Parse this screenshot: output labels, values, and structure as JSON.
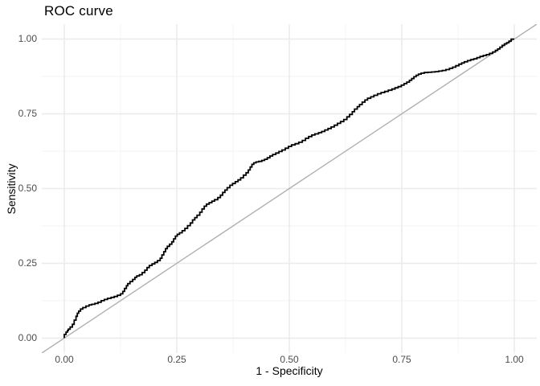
{
  "chart_data": {
    "type": "line",
    "title": "ROC curve",
    "xlabel": "1 - Specificity",
    "ylabel": "Sensitivity",
    "xlim": [
      -0.05,
      1.05
    ],
    "ylim": [
      -0.05,
      1.05
    ],
    "x_ticks": {
      "values": [
        0,
        0.25,
        0.5,
        0.75,
        1
      ],
      "labels": [
        "0.00",
        "0.25",
        "0.50",
        "0.75",
        "1.00"
      ]
    },
    "y_ticks": {
      "values": [
        0,
        0.25,
        0.5,
        0.75,
        1
      ],
      "labels": [
        "0.00",
        "0.25",
        "0.50",
        "0.75",
        "1.00"
      ]
    },
    "minor_tick_values": [
      0.125,
      0.375,
      0.625,
      0.875
    ],
    "grid": {
      "show": true,
      "major_color": "#ebebeb",
      "minor_color": "#f2f2f2",
      "major_width": 1.6,
      "minor_width": 0.9
    },
    "legend": "none",
    "background": "#ffffff",
    "series": [
      {
        "name": "roc-curve",
        "draw": "step",
        "color": "#000000",
        "width": 1.8,
        "points": [
          [
            0.0,
            0.0
          ],
          [
            0.004,
            0.012
          ],
          [
            0.007,
            0.02
          ],
          [
            0.009,
            0.025
          ],
          [
            0.013,
            0.03
          ],
          [
            0.018,
            0.037
          ],
          [
            0.022,
            0.046
          ],
          [
            0.026,
            0.06
          ],
          [
            0.029,
            0.073
          ],
          [
            0.032,
            0.083
          ],
          [
            0.036,
            0.09
          ],
          [
            0.041,
            0.097
          ],
          [
            0.048,
            0.102
          ],
          [
            0.055,
            0.107
          ],
          [
            0.061,
            0.111
          ],
          [
            0.068,
            0.113
          ],
          [
            0.075,
            0.116
          ],
          [
            0.082,
            0.12
          ],
          [
            0.089,
            0.125
          ],
          [
            0.096,
            0.129
          ],
          [
            0.104,
            0.133
          ],
          [
            0.111,
            0.136
          ],
          [
            0.118,
            0.139
          ],
          [
            0.125,
            0.143
          ],
          [
            0.13,
            0.148
          ],
          [
            0.134,
            0.156
          ],
          [
            0.138,
            0.166
          ],
          [
            0.141,
            0.175
          ],
          [
            0.146,
            0.182
          ],
          [
            0.152,
            0.189
          ],
          [
            0.157,
            0.196
          ],
          [
            0.161,
            0.203
          ],
          [
            0.167,
            0.208
          ],
          [
            0.173,
            0.212
          ],
          [
            0.179,
            0.219
          ],
          [
            0.184,
            0.227
          ],
          [
            0.189,
            0.236
          ],
          [
            0.195,
            0.243
          ],
          [
            0.201,
            0.248
          ],
          [
            0.207,
            0.253
          ],
          [
            0.213,
            0.259
          ],
          [
            0.217,
            0.267
          ],
          [
            0.221,
            0.278
          ],
          [
            0.225,
            0.289
          ],
          [
            0.229,
            0.299
          ],
          [
            0.234,
            0.307
          ],
          [
            0.239,
            0.314
          ],
          [
            0.243,
            0.322
          ],
          [
            0.247,
            0.332
          ],
          [
            0.251,
            0.341
          ],
          [
            0.256,
            0.347
          ],
          [
            0.262,
            0.352
          ],
          [
            0.268,
            0.359
          ],
          [
            0.274,
            0.367
          ],
          [
            0.28,
            0.376
          ],
          [
            0.285,
            0.385
          ],
          [
            0.29,
            0.395
          ],
          [
            0.295,
            0.403
          ],
          [
            0.301,
            0.411
          ],
          [
            0.306,
            0.421
          ],
          [
            0.311,
            0.432
          ],
          [
            0.316,
            0.441
          ],
          [
            0.322,
            0.448
          ],
          [
            0.328,
            0.453
          ],
          [
            0.334,
            0.458
          ],
          [
            0.341,
            0.463
          ],
          [
            0.347,
            0.47
          ],
          [
            0.352,
            0.478
          ],
          [
            0.357,
            0.487
          ],
          [
            0.362,
            0.495
          ],
          [
            0.368,
            0.503
          ],
          [
            0.374,
            0.511
          ],
          [
            0.38,
            0.517
          ],
          [
            0.386,
            0.523
          ],
          [
            0.392,
            0.529
          ],
          [
            0.398,
            0.536
          ],
          [
            0.404,
            0.545
          ],
          [
            0.409,
            0.553
          ],
          [
            0.413,
            0.562
          ],
          [
            0.417,
            0.572
          ],
          [
            0.421,
            0.581
          ],
          [
            0.426,
            0.586
          ],
          [
            0.432,
            0.589
          ],
          [
            0.439,
            0.591
          ],
          [
            0.445,
            0.594
          ],
          [
            0.451,
            0.598
          ],
          [
            0.457,
            0.603
          ],
          [
            0.463,
            0.609
          ],
          [
            0.47,
            0.614
          ],
          [
            0.477,
            0.619
          ],
          [
            0.484,
            0.624
          ],
          [
            0.491,
            0.629
          ],
          [
            0.498,
            0.635
          ],
          [
            0.505,
            0.641
          ],
          [
            0.513,
            0.646
          ],
          [
            0.521,
            0.65
          ],
          [
            0.529,
            0.655
          ],
          [
            0.536,
            0.661
          ],
          [
            0.543,
            0.668
          ],
          [
            0.55,
            0.674
          ],
          [
            0.557,
            0.679
          ],
          [
            0.565,
            0.683
          ],
          [
            0.572,
            0.687
          ],
          [
            0.579,
            0.691
          ],
          [
            0.586,
            0.696
          ],
          [
            0.593,
            0.701
          ],
          [
            0.6,
            0.706
          ],
          [
            0.607,
            0.712
          ],
          [
            0.614,
            0.718
          ],
          [
            0.621,
            0.724
          ],
          [
            0.628,
            0.731
          ],
          [
            0.634,
            0.74
          ],
          [
            0.64,
            0.748
          ],
          [
            0.645,
            0.757
          ],
          [
            0.651,
            0.766
          ],
          [
            0.656,
            0.774
          ],
          [
            0.662,
            0.781
          ],
          [
            0.668,
            0.789
          ],
          [
            0.674,
            0.796
          ],
          [
            0.681,
            0.802
          ],
          [
            0.688,
            0.807
          ],
          [
            0.696,
            0.812
          ],
          [
            0.704,
            0.817
          ],
          [
            0.712,
            0.821
          ],
          [
            0.72,
            0.825
          ],
          [
            0.728,
            0.829
          ],
          [
            0.735,
            0.833
          ],
          [
            0.742,
            0.837
          ],
          [
            0.749,
            0.841
          ],
          [
            0.755,
            0.846
          ],
          [
            0.761,
            0.851
          ],
          [
            0.767,
            0.856
          ],
          [
            0.772,
            0.862
          ],
          [
            0.777,
            0.868
          ],
          [
            0.782,
            0.874
          ],
          [
            0.787,
            0.879
          ],
          [
            0.793,
            0.883
          ],
          [
            0.8,
            0.886
          ],
          [
            0.808,
            0.888
          ],
          [
            0.816,
            0.889
          ],
          [
            0.824,
            0.89
          ],
          [
            0.832,
            0.891
          ],
          [
            0.84,
            0.893
          ],
          [
            0.848,
            0.895
          ],
          [
            0.856,
            0.898
          ],
          [
            0.863,
            0.902
          ],
          [
            0.87,
            0.906
          ],
          [
            0.877,
            0.911
          ],
          [
            0.883,
            0.916
          ],
          [
            0.889,
            0.92
          ],
          [
            0.896,
            0.924
          ],
          [
            0.903,
            0.928
          ],
          [
            0.91,
            0.931
          ],
          [
            0.917,
            0.934
          ],
          [
            0.924,
            0.938
          ],
          [
            0.931,
            0.942
          ],
          [
            0.938,
            0.945
          ],
          [
            0.945,
            0.948
          ],
          [
            0.952,
            0.952
          ],
          [
            0.958,
            0.957
          ],
          [
            0.963,
            0.962
          ],
          [
            0.968,
            0.967
          ],
          [
            0.973,
            0.973
          ],
          [
            0.978,
            0.979
          ],
          [
            0.983,
            0.984
          ],
          [
            0.988,
            0.988
          ],
          [
            0.993,
            0.993
          ],
          [
            1.0,
            1.0
          ]
        ]
      },
      {
        "name": "chance-diagonal",
        "draw": "line",
        "color": "#b0b0b0",
        "width": 1.4,
        "points": [
          [
            -0.05,
            -0.05
          ],
          [
            1.05,
            1.05
          ]
        ]
      }
    ]
  }
}
